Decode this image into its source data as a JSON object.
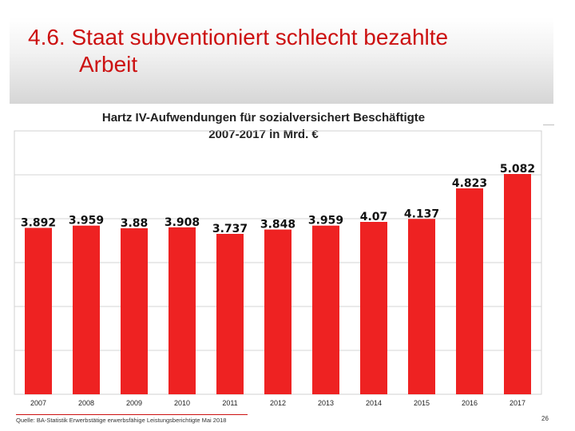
{
  "slide": {
    "title_line1": "4.6. Staat subventioniert schlecht bezahlte",
    "title_line2": "Arbeit",
    "source": "Quelle: BA-Statistik Erwerbstätige erwerbsfähige Leistungsberichtigte Mai 2018",
    "page_number": "26"
  },
  "chart_data": {
    "type": "bar",
    "title": "Hartz IV-Aufwendungen für sozialversichert Beschäftigte",
    "subtitle": "2007-2017 in Mrd. €",
    "categories": [
      "2007",
      "2008",
      "2009",
      "2010",
      "2011",
      "2012",
      "2013",
      "2014",
      "2015",
      "2016",
      "2017"
    ],
    "values": [
      3.892,
      3.959,
      3.88,
      3.908,
      3.737,
      3.848,
      3.959,
      4.07,
      4.137,
      4.823,
      5.082
    ],
    "value_labels": [
      "3.892",
      "3.959",
      "3.88",
      "3.908",
      "3.737",
      "3.848",
      "3.959",
      "4.07",
      "4.137",
      "4.823",
      "5.082"
    ],
    "bar_color": "#ee2222",
    "grid": true,
    "legend": "none"
  }
}
